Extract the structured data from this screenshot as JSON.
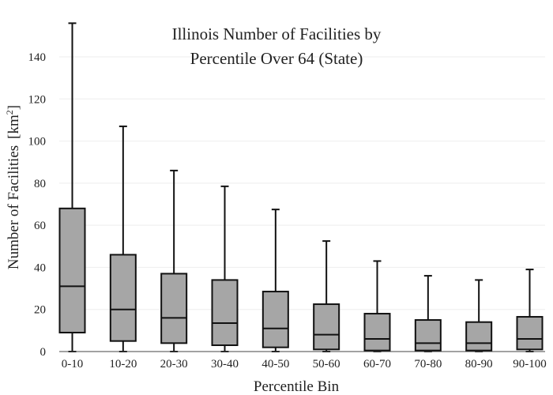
{
  "chart_data": {
    "type": "box",
    "title_lines": [
      "Illinois Number of Facilities by",
      "Percentile Over 64 (State)"
    ],
    "xlabel": "Percentile Bin",
    "ylabel": "Number of Facilities",
    "ylabel_unit": "[km",
    "ylabel_unit_sup": "2",
    "ylabel_unit_close": "]",
    "ylim": [
      0,
      157
    ],
    "yticks": [
      0,
      20,
      40,
      60,
      80,
      100,
      120,
      140
    ],
    "grid": true,
    "categories": [
      "0-10",
      "10-20",
      "20-30",
      "30-40",
      "40-50",
      "50-60",
      "60-70",
      "70-80",
      "80-90",
      "90-100"
    ],
    "boxes": [
      {
        "min": 0,
        "q1": 9,
        "median": 31,
        "q3": 68,
        "max": 156
      },
      {
        "min": 0,
        "q1": 5,
        "median": 20,
        "q3": 46,
        "max": 107
      },
      {
        "min": 0,
        "q1": 4,
        "median": 16,
        "q3": 37,
        "max": 86
      },
      {
        "min": 0,
        "q1": 3,
        "median": 13.5,
        "q3": 34,
        "max": 78.5
      },
      {
        "min": 0,
        "q1": 2,
        "median": 11,
        "q3": 28.5,
        "max": 67.5
      },
      {
        "min": 0,
        "q1": 1,
        "median": 8,
        "q3": 22.5,
        "max": 52.5
      },
      {
        "min": 0,
        "q1": 0.5,
        "median": 6,
        "q3": 18,
        "max": 43
      },
      {
        "min": 0,
        "q1": 0.5,
        "median": 4,
        "q3": 15,
        "max": 36
      },
      {
        "min": 0,
        "q1": 0.5,
        "median": 4,
        "q3": 14,
        "max": 34
      },
      {
        "min": 0,
        "q1": 1,
        "median": 6,
        "q3": 16.5,
        "max": 39
      }
    ],
    "colors": {
      "box_fill": "#a6a6a6",
      "stroke": "#111111",
      "grid": "#eeeeee",
      "axis": "#444444"
    }
  }
}
